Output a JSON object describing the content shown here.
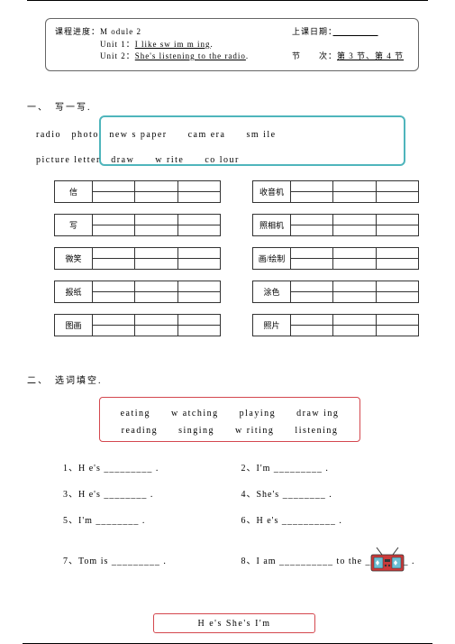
{
  "header": {
    "progress_label": "课程进度：",
    "module": "M odule 2",
    "unit1_label": "Unit 1：",
    "unit1_text": "I like sw im m ing",
    "unit2_label": "Unit 2：",
    "unit2_text": "She's listening to the radio",
    "date_label": "上课日期：",
    "section_label": "节　　次：",
    "section_value": "第 3 节、第 4 节"
  },
  "section1": {
    "title": "一、　写一写.",
    "line1": "radio　photo　new s paper　　cam era　　sm ile",
    "line2": "picture letter　draw　　w rite　　co lour",
    "rows": [
      {
        "l": "信",
        "r": "收音机"
      },
      {
        "l": "写",
        "r": "照相机"
      },
      {
        "l": "微笑",
        "r": "画/绘制"
      },
      {
        "l": "报纸",
        "r": "涂色"
      },
      {
        "l": "图画",
        "r": "照片"
      }
    ]
  },
  "section2": {
    "title": "二、　选词填空.",
    "box_line1": "eating　　w atching　　playing　　draw ing",
    "box_line2": "reading　　singing　　w riting　　listening",
    "fills": [
      {
        "l": "1、H e's _________ .",
        "r": "2、I'm _________ ."
      },
      {
        "l": "3、H e's ________ .",
        "r": "4、She's ________ ."
      },
      {
        "l": "5、I'm ________ .",
        "r": "6、H e's __________ ."
      }
    ],
    "fill7l": "7、Tom is _________ .",
    "fill7r": "8、I am __________ to the ________ ."
  },
  "bottom": {
    "text": "H e's She's I'm"
  },
  "colors": {
    "teal": "#4fb5bc",
    "red": "#d4474e",
    "radio_body": "#cc3a3a",
    "radio_speaker": "#6bbfd4"
  }
}
